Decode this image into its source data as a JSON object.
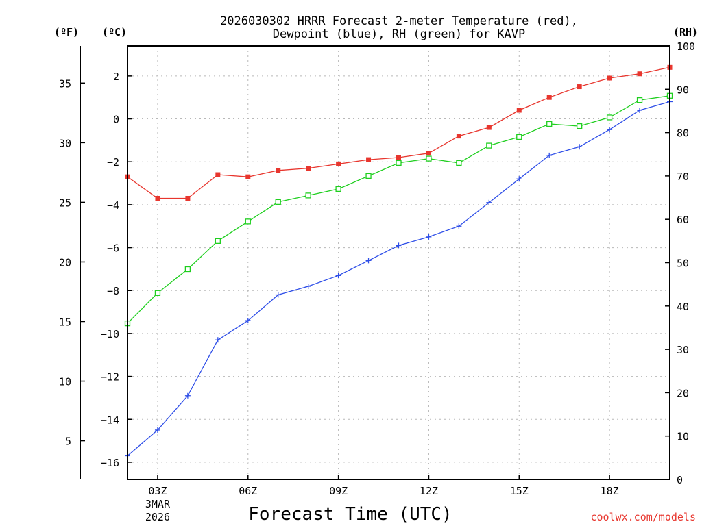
{
  "chart_data": {
    "type": "line",
    "title_line1": "2026030302 HRRR Forecast 2-meter Temperature (red),",
    "title_line2": "Dewpoint (blue), RH (green) for KAVP",
    "xlabel": "Forecast Time (UTC)",
    "credit": "coolwx.com/models",
    "units": {
      "fahrenheit": "(ºF)",
      "celsius": "(ºC)",
      "rh": "(RH)"
    },
    "x_hours": [
      2,
      3,
      4,
      5,
      6,
      7,
      8,
      9,
      10,
      11,
      12,
      13,
      14,
      15,
      16,
      17,
      18,
      19,
      20
    ],
    "xlim": [
      2,
      20
    ],
    "x_ticks": [
      {
        "hour": 3,
        "label": "03Z",
        "sub1": "3MAR",
        "sub2": "2026"
      },
      {
        "hour": 6,
        "label": "06Z"
      },
      {
        "hour": 9,
        "label": "09Z"
      },
      {
        "hour": 12,
        "label": "12Z"
      },
      {
        "hour": 15,
        "label": "15Z"
      },
      {
        "hour": 18,
        "label": "18Z"
      }
    ],
    "celsius_axis": {
      "range": [
        -16.8,
        3.4
      ],
      "ticks": [
        "2",
        "0",
        "−2",
        "−4",
        "−6",
        "−8",
        "−10",
        "−12",
        "−14",
        "−16"
      ]
    },
    "fahrenheit_axis": {
      "ticks": [
        "35",
        "30",
        "25",
        "20",
        "15",
        "10",
        "5"
      ]
    },
    "rh_axis": {
      "range": [
        0,
        100
      ],
      "ticks": [
        "100",
        "90",
        "80",
        "70",
        "60",
        "50",
        "40",
        "30",
        "20",
        "10",
        "0"
      ]
    },
    "series": [
      {
        "name": "Temperature",
        "color": "#e8362e",
        "axis": "celsius",
        "marker": "filled-square",
        "values": [
          -2.7,
          -3.7,
          -3.7,
          -2.6,
          -2.7,
          -2.4,
          -2.3,
          -2.1,
          -1.9,
          -1.8,
          -1.6,
          -0.8,
          -0.4,
          0.4,
          1.0,
          1.5,
          1.9,
          2.1,
          2.4
        ]
      },
      {
        "name": "Dewpoint",
        "color": "#2e4ee8",
        "axis": "celsius",
        "marker": "plus",
        "values": [
          -15.7,
          -14.5,
          -12.9,
          -10.3,
          -9.4,
          -8.2,
          -7.8,
          -7.3,
          -6.6,
          -5.9,
          -5.5,
          -5.0,
          -3.9,
          -2.8,
          -1.7,
          -1.3,
          -0.5,
          0.4,
          0.8
        ]
      },
      {
        "name": "RH",
        "color": "#1fcf1f",
        "axis": "rh",
        "marker": "open-square",
        "values": [
          36,
          43,
          48.5,
          55,
          59.5,
          64,
          65.5,
          67,
          70,
          73,
          74,
          73,
          77,
          79,
          82,
          81.5,
          83.5,
          87.5,
          88.5
        ]
      }
    ]
  }
}
